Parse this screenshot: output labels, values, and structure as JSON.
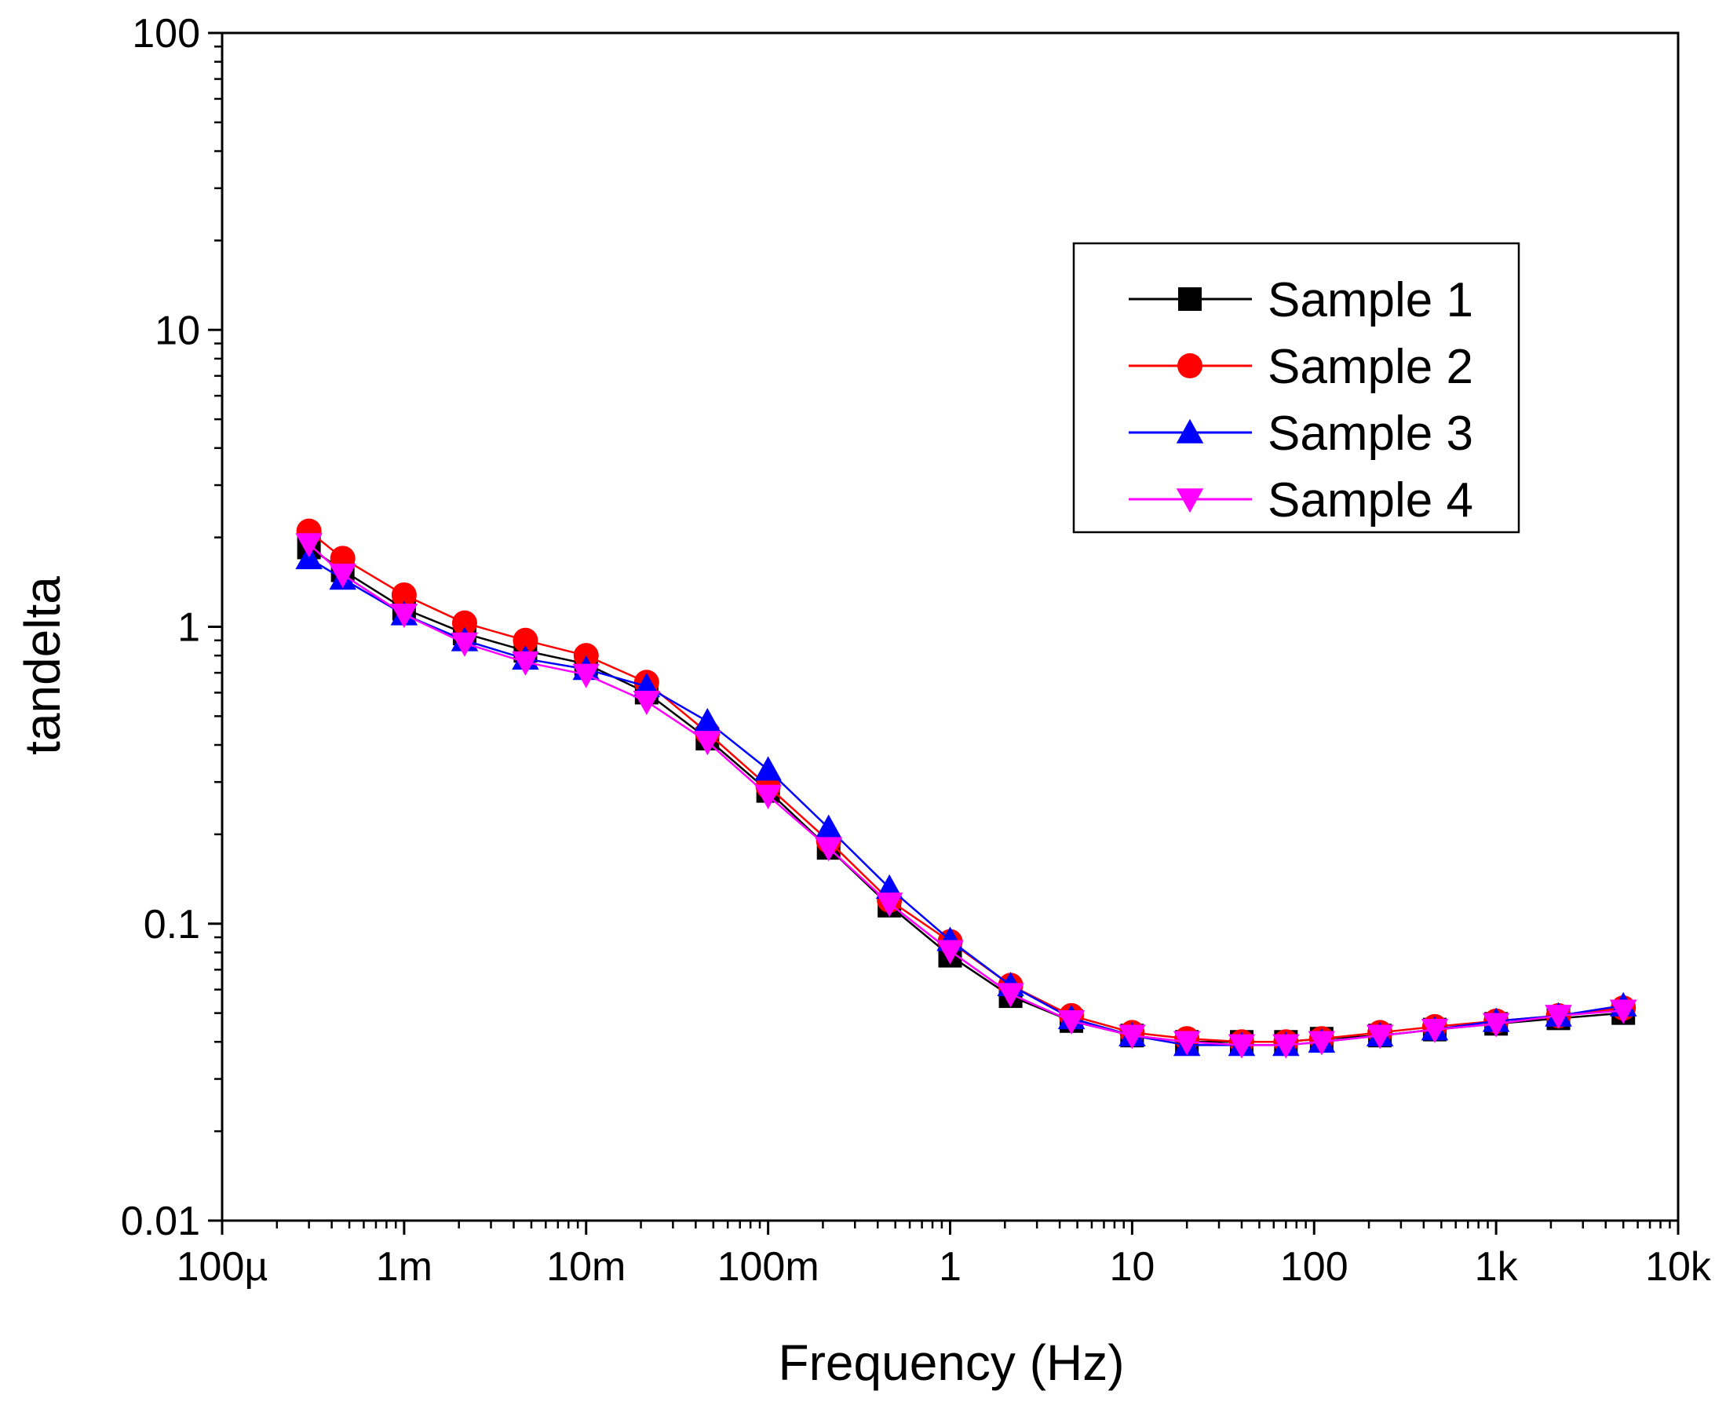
{
  "chart_data": {
    "type": "line",
    "title": "",
    "xlabel": "Frequency (Hz)",
    "ylabel": "tandelta",
    "x_scale": "log",
    "y_scale": "log",
    "xlim": [
      0.0001,
      10000
    ],
    "ylim": [
      0.01,
      100
    ],
    "grid": false,
    "legend_position": "top-right",
    "x_ticks": [
      {
        "value": 0.0001,
        "label": "100µ"
      },
      {
        "value": 0.001,
        "label": "1m"
      },
      {
        "value": 0.01,
        "label": "10m"
      },
      {
        "value": 0.1,
        "label": "100m"
      },
      {
        "value": 1,
        "label": "1"
      },
      {
        "value": 10,
        "label": "10"
      },
      {
        "value": 100,
        "label": "100"
      },
      {
        "value": 1000,
        "label": "1k"
      },
      {
        "value": 10000,
        "label": "10k"
      }
    ],
    "y_ticks": [
      {
        "value": 0.01,
        "label": "0.01"
      },
      {
        "value": 0.1,
        "label": "0.1"
      },
      {
        "value": 1,
        "label": "1"
      },
      {
        "value": 10,
        "label": "10"
      },
      {
        "value": 100,
        "label": "100"
      }
    ],
    "x": [
      0.0003,
      0.00046,
      0.001,
      0.00215,
      0.00464,
      0.01,
      0.0215,
      0.0464,
      0.1,
      0.215,
      0.464,
      1,
      2.15,
      4.64,
      10,
      20,
      40,
      70,
      110,
      230,
      460,
      1000,
      2200,
      5000
    ],
    "series": [
      {
        "name": "Sample 1",
        "color": "#000000",
        "marker": "square",
        "values": [
          1.85,
          1.55,
          1.15,
          0.95,
          0.83,
          0.75,
          0.6,
          0.42,
          0.28,
          0.18,
          0.115,
          0.078,
          0.057,
          0.047,
          0.042,
          0.04,
          0.04,
          0.04,
          0.041,
          0.042,
          0.044,
          0.046,
          0.048,
          0.05
        ]
      },
      {
        "name": "Sample 2",
        "color": "#ff0000",
        "marker": "circle",
        "values": [
          2.1,
          1.7,
          1.28,
          1.03,
          0.9,
          0.8,
          0.65,
          0.44,
          0.29,
          0.19,
          0.12,
          0.087,
          0.062,
          0.049,
          0.043,
          0.041,
          0.04,
          0.04,
          0.041,
          0.043,
          0.045,
          0.047,
          0.049,
          0.052
        ]
      },
      {
        "name": "Sample 3",
        "color": "#0000ff",
        "marker": "triangle-up",
        "values": [
          1.7,
          1.45,
          1.1,
          0.9,
          0.78,
          0.72,
          0.63,
          0.48,
          0.33,
          0.21,
          0.132,
          0.088,
          0.062,
          0.048,
          0.042,
          0.039,
          0.039,
          0.039,
          0.04,
          0.042,
          0.044,
          0.047,
          0.049,
          0.053
        ]
      },
      {
        "name": "Sample 4",
        "color": "#ff00ff",
        "marker": "triangle-down",
        "values": [
          1.9,
          1.5,
          1.1,
          0.88,
          0.76,
          0.69,
          0.56,
          0.41,
          0.27,
          0.18,
          0.117,
          0.081,
          0.058,
          0.047,
          0.042,
          0.04,
          0.039,
          0.039,
          0.04,
          0.042,
          0.044,
          0.046,
          0.049,
          0.051
        ]
      }
    ]
  }
}
